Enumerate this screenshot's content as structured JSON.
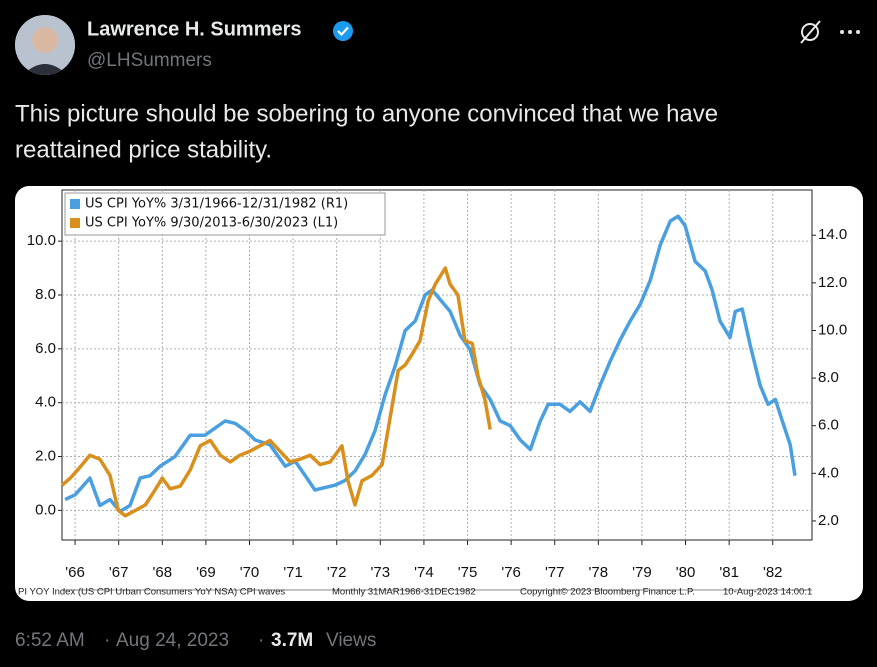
{
  "author": {
    "name": "Lawrence H. Summers",
    "handle": "@LHSummers"
  },
  "tweet_text": [
    "This picture should be sobering to anyone convinced that we have",
    "reattained price stability."
  ],
  "footer": {
    "time": "6:52 AM",
    "separator": "·",
    "date": "Aug 24, 2023",
    "views_count": "3.7M",
    "views_label": "Views"
  },
  "chart_data": {
    "type": "line",
    "legend": "upper left",
    "grid": true,
    "xlim": [
      1966.2,
      1983.4
    ],
    "xticks": [
      {
        "value": 1966.5,
        "label": "'66"
      },
      {
        "value": 1967.5,
        "label": "'67"
      },
      {
        "value": 1968.5,
        "label": "'68"
      },
      {
        "value": 1969.5,
        "label": "'69"
      },
      {
        "value": 1970.5,
        "label": "'70"
      },
      {
        "value": 1971.5,
        "label": "'71"
      },
      {
        "value": 1972.5,
        "label": "'72"
      },
      {
        "value": 1973.5,
        "label": "'73"
      },
      {
        "value": 1974.5,
        "label": "'74"
      },
      {
        "value": 1975.5,
        "label": "'75"
      },
      {
        "value": 1976.5,
        "label": "'76"
      },
      {
        "value": 1977.5,
        "label": "'77"
      },
      {
        "value": 1978.5,
        "label": "'78"
      },
      {
        "value": 1979.5,
        "label": "'79"
      },
      {
        "value": 1980.5,
        "label": "'80"
      },
      {
        "value": 1981.5,
        "label": "'81"
      },
      {
        "value": 1982.5,
        "label": "'82"
      }
    ],
    "ylim": [
      -1.1,
      11.9
    ],
    "yticks": [
      {
        "value": 0,
        "label": "0.0"
      },
      {
        "value": 2,
        "label": "2.0"
      },
      {
        "value": 4,
        "label": "4.0"
      },
      {
        "value": 6,
        "label": "6.0"
      },
      {
        "value": 8,
        "label": "8.0"
      },
      {
        "value": 10,
        "label": "10.0"
      }
    ],
    "y2lim": [
      1.2,
      15.9
    ],
    "y2ticks": [
      {
        "value": 2,
        "label": "2.0"
      },
      {
        "value": 4,
        "label": "4.0"
      },
      {
        "value": 6,
        "label": "6.0"
      },
      {
        "value": 8,
        "label": "8.0"
      },
      {
        "value": 10,
        "label": "10.0"
      },
      {
        "value": 12,
        "label": "12.0"
      },
      {
        "value": 14,
        "label": "14.0"
      }
    ],
    "series": [
      {
        "name": "US CPI YoY% 3/31/1966-12/31/1982 (R1)",
        "color": "#4a9fe0",
        "axis": "y2",
        "x": [
          1966.27,
          1966.5,
          1966.84,
          1967.07,
          1967.3,
          1967.53,
          1967.76,
          1967.99,
          1968.22,
          1968.45,
          1968.79,
          1969.14,
          1969.48,
          1969.71,
          1969.94,
          1970.17,
          1970.4,
          1970.63,
          1970.97,
          1971.32,
          1971.55,
          1971.78,
          1972.0,
          1972.23,
          1972.46,
          1972.69,
          1972.92,
          1973.15,
          1973.38,
          1973.61,
          1973.84,
          1974.07,
          1974.3,
          1974.53,
          1974.69,
          1974.87,
          1975.1,
          1975.33,
          1975.56,
          1975.79,
          1976.02,
          1976.25,
          1976.48,
          1976.71,
          1976.94,
          1977.17,
          1977.35,
          1977.62,
          1977.85,
          1978.08,
          1978.31,
          1978.54,
          1978.77,
          1979.0,
          1979.23,
          1979.46,
          1979.69,
          1979.92,
          1980.15,
          1980.33,
          1980.49,
          1980.72,
          1980.95,
          1981.11,
          1981.29,
          1981.52,
          1981.64,
          1981.8,
          1981.98,
          1982.21,
          1982.39,
          1982.56,
          1982.72,
          1982.9,
          1983.01
        ],
        "values": [
          2.9,
          3.1,
          3.8,
          2.65,
          2.9,
          2.4,
          2.65,
          3.8,
          3.9,
          4.3,
          4.7,
          5.6,
          5.6,
          5.9,
          6.2,
          6.1,
          5.8,
          5.4,
          5.2,
          4.3,
          4.5,
          3.9,
          3.3,
          3.4,
          3.5,
          3.7,
          4.1,
          4.8,
          5.8,
          7.3,
          8.5,
          10.0,
          10.4,
          11.5,
          11.7,
          11.3,
          10.8,
          9.8,
          9.2,
          7.7,
          7.1,
          6.2,
          6.0,
          5.4,
          5.0,
          6.2,
          6.9,
          6.9,
          6.6,
          7.0,
          6.6,
          7.7,
          8.7,
          9.6,
          10.4,
          11.1,
          12.1,
          13.6,
          14.6,
          14.8,
          14.4,
          12.9,
          12.5,
          11.7,
          10.4,
          9.7,
          10.8,
          10.9,
          9.4,
          7.7,
          6.9,
          7.1,
          6.2,
          5.2,
          3.9
        ]
      },
      {
        "name": "US CPI YoY% 9/30/2013-6/30/2023 (L1)",
        "color": "#d98f1c",
        "axis": "y",
        "x": [
          1966.2,
          1966.39,
          1966.61,
          1966.84,
          1967.07,
          1967.3,
          1967.49,
          1967.65,
          1967.88,
          1968.11,
          1968.33,
          1968.5,
          1968.68,
          1968.91,
          1969.14,
          1969.37,
          1969.6,
          1969.83,
          1970.06,
          1970.28,
          1970.51,
          1970.74,
          1970.97,
          1971.2,
          1971.43,
          1971.66,
          1971.89,
          1972.12,
          1972.35,
          1972.62,
          1972.76,
          1972.92,
          1973.08,
          1973.31,
          1973.54,
          1973.72,
          1973.91,
          1974.07,
          1974.23,
          1974.41,
          1974.6,
          1974.76,
          1974.99,
          1975.1,
          1975.28,
          1975.44,
          1975.61,
          1975.74,
          1975.9,
          1976.02
        ],
        "values": [
          0.93,
          1.2,
          1.6,
          2.05,
          1.9,
          1.3,
          0.0,
          -0.2,
          0.0,
          0.2,
          0.75,
          1.2,
          0.8,
          0.9,
          1.5,
          2.4,
          2.6,
          2.05,
          1.8,
          2.05,
          2.2,
          2.4,
          2.6,
          2.2,
          1.8,
          1.9,
          2.05,
          1.7,
          1.8,
          2.4,
          1.1,
          0.2,
          1.1,
          1.3,
          1.7,
          3.4,
          5.2,
          5.4,
          5.8,
          6.3,
          7.8,
          8.4,
          9.0,
          8.4,
          8.0,
          6.3,
          6.2,
          5.0,
          4.1,
          3.0
        ]
      }
    ],
    "notes": [
      "PI YOY Index (US CPI Urban Consumers YoY NSA) CPI waves",
      "Monthly 31MAR1966-31DEC1982",
      "Copyright© 2023 Bloomberg Finance L.P.",
      "10-Aug-2023 14:00:1"
    ]
  }
}
